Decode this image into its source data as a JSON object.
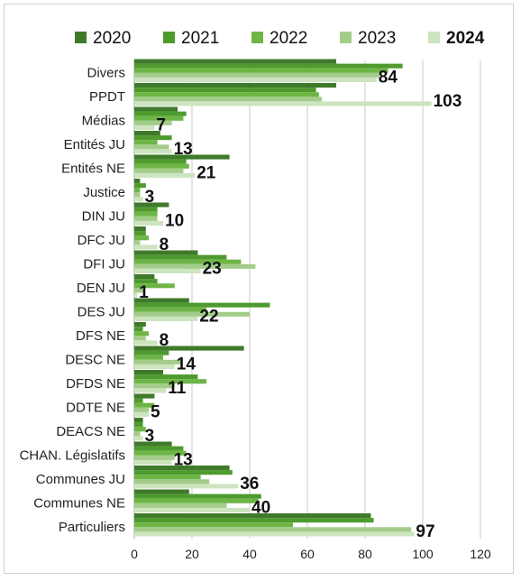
{
  "chart_data": {
    "type": "bar",
    "orientation": "horizontal",
    "title": "",
    "xlabel": "",
    "ylabel": "",
    "xlim": [
      0,
      120
    ],
    "x_ticks": [
      0,
      20,
      40,
      60,
      80,
      100,
      120
    ],
    "grid": "vertical",
    "legend_position": "top",
    "categories": [
      "Divers",
      "PPDT",
      "Médias",
      "Entités JU",
      "Entités NE",
      "Justice",
      "DIN JU",
      "DFC JU",
      "DFI JU",
      "DEN JU",
      "DES JU",
      "DFS NE",
      "DESC NE",
      "DFDS NE",
      "DDTE NE",
      "DEACS NE",
      "CHAN. Législatifs",
      "Communes JU",
      "Communes NE",
      "Particuliers"
    ],
    "series": [
      {
        "name": "2020",
        "color": "#3f7a2a",
        "values": [
          70,
          70,
          15,
          9,
          33,
          2,
          12,
          4,
          22,
          7,
          19,
          4,
          38,
          10,
          7,
          3,
          13,
          33,
          19,
          82
        ]
      },
      {
        "name": "2021",
        "color": "#4e9a2f",
        "values": [
          93,
          63,
          18,
          13,
          18,
          4,
          8,
          4,
          32,
          8,
          47,
          3,
          12,
          22,
          3,
          3,
          17,
          34,
          44,
          83
        ]
      },
      {
        "name": "2022",
        "color": "#6db545",
        "values": [
          88,
          64,
          17,
          8,
          19,
          2,
          8,
          5,
          37,
          14,
          25,
          5,
          10,
          25,
          7,
          4,
          18,
          23,
          43,
          55
        ]
      },
      {
        "name": "2023",
        "color": "#a3cc8a",
        "values": [
          85,
          65,
          13,
          12,
          17,
          2,
          8,
          2,
          42,
          3,
          40,
          4,
          16,
          14,
          5,
          2,
          14,
          26,
          32,
          96
        ]
      },
      {
        "name": "2024",
        "color": "#cde4c0",
        "values": [
          84,
          103,
          7,
          13,
          21,
          3,
          10,
          8,
          23,
          1,
          22,
          8,
          14,
          11,
          5,
          3,
          13,
          36,
          40,
          97
        ]
      }
    ],
    "data_labels_series": "2024"
  }
}
